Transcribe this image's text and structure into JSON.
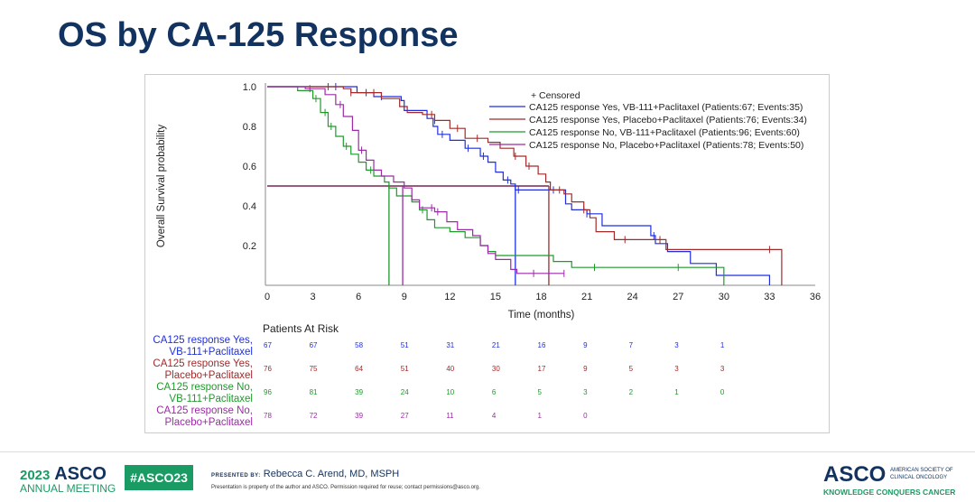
{
  "slide_title": "OS by CA-125 Response",
  "chart_data": {
    "type": "line",
    "subtype": "kaplan-meier step",
    "xlabel": "Time (months)",
    "ylabel": "Overall Survival probability",
    "xlim": [
      0,
      36
    ],
    "ylim": [
      0,
      1.0
    ],
    "x_ticks": [
      0,
      3,
      6,
      9,
      12,
      15,
      18,
      21,
      24,
      27,
      30,
      33,
      36
    ],
    "y_ticks": [
      0.2,
      0.4,
      0.6,
      0.8,
      1.0
    ],
    "y_tick_labels": [
      "0.2",
      "0.4",
      "0.6",
      "0.8",
      "1.0"
    ],
    "grid": false,
    "legend_position": "top-right",
    "legend_censored": "+ Censored",
    "median_line": {
      "y": 0.5,
      "color": "#7a2550"
    },
    "series": [
      {
        "name": "CA125 response Yes, VB-111+Paclitaxel (Patients:67; Events:35)",
        "color": "#1f2fe0",
        "median": 16.3,
        "points": [
          [
            0,
            1
          ],
          [
            5.85,
            1
          ],
          [
            5.9,
            0.97
          ],
          [
            7,
            0.95
          ],
          [
            8.8,
            0.93
          ],
          [
            9,
            0.88
          ],
          [
            10.5,
            0.84
          ],
          [
            10.9,
            0.8
          ],
          [
            11.2,
            0.76
          ],
          [
            12,
            0.73
          ],
          [
            13,
            0.69
          ],
          [
            14,
            0.65
          ],
          [
            14.5,
            0.62
          ],
          [
            15,
            0.57
          ],
          [
            15.5,
            0.53
          ],
          [
            16,
            0.51
          ],
          [
            16.3,
            0.48
          ],
          [
            19.4,
            0.48
          ],
          [
            19.6,
            0.41
          ],
          [
            20,
            0.38
          ],
          [
            21,
            0.36
          ],
          [
            22,
            0.3
          ],
          [
            25.2,
            0.25
          ],
          [
            25.5,
            0.21
          ],
          [
            26.3,
            0.17
          ],
          [
            27.8,
            0.11
          ],
          [
            29.5,
            0.05
          ],
          [
            33,
            0
          ]
        ],
        "censored": [
          4.5,
          6.5,
          7.5,
          11.5,
          13.2,
          14.2,
          15.8,
          16.5,
          18.8,
          21,
          25.4
        ]
      },
      {
        "name": "CA125 response Yes, Placebo+Paclitaxel (Patients:76; Events:34)",
        "color": "#a12a2a",
        "median": 18.5,
        "points": [
          [
            0,
            1
          ],
          [
            5,
            0.99
          ],
          [
            5.5,
            0.97
          ],
          [
            7.5,
            0.94
          ],
          [
            8.7,
            0.9
          ],
          [
            9.2,
            0.87
          ],
          [
            10.2,
            0.86
          ],
          [
            11,
            0.83
          ],
          [
            12,
            0.79
          ],
          [
            13,
            0.74
          ],
          [
            14.5,
            0.72
          ],
          [
            15.3,
            0.69
          ],
          [
            16.2,
            0.65
          ],
          [
            17,
            0.6
          ],
          [
            17.8,
            0.56
          ],
          [
            18.3,
            0.52
          ],
          [
            18.6,
            0.48
          ],
          [
            19.5,
            0.46
          ],
          [
            20,
            0.42
          ],
          [
            20.8,
            0.38
          ],
          [
            21.2,
            0.34
          ],
          [
            21.6,
            0.27
          ],
          [
            22.8,
            0.23
          ],
          [
            26.2,
            0.18
          ],
          [
            33.8,
            0.17
          ],
          [
            33.8,
            0
          ]
        ],
        "censored": [
          4,
          5.5,
          7,
          10.8,
          11,
          12.5,
          13.8,
          16.3,
          17.2,
          19.2,
          20.8,
          23.5,
          25.8,
          33
        ]
      },
      {
        "name": "CA125 response No, VB-111+Paclitaxel (Patients:96; Events:60)",
        "color": "#1e9a2a",
        "median": 8.0,
        "points": [
          [
            0,
            1
          ],
          [
            1.4,
            1
          ],
          [
            2,
            0.98
          ],
          [
            3,
            0.94
          ],
          [
            3.5,
            0.87
          ],
          [
            4,
            0.8
          ],
          [
            4.5,
            0.75
          ],
          [
            5,
            0.7
          ],
          [
            5.5,
            0.66
          ],
          [
            6,
            0.62
          ],
          [
            6.5,
            0.58
          ],
          [
            7,
            0.55
          ],
          [
            7.7,
            0.52
          ],
          [
            8,
            0.49
          ],
          [
            8.5,
            0.45
          ],
          [
            9.5,
            0.42
          ],
          [
            10,
            0.38
          ],
          [
            10.5,
            0.33
          ],
          [
            11,
            0.29
          ],
          [
            12,
            0.27
          ],
          [
            13,
            0.24
          ],
          [
            14,
            0.2
          ],
          [
            14.5,
            0.17
          ],
          [
            15,
            0.15
          ],
          [
            18.8,
            0.12
          ],
          [
            20,
            0.09
          ],
          [
            30,
            0.07
          ],
          [
            30,
            0
          ]
        ],
        "censored": [
          3.2,
          3.8,
          4.2,
          5.2,
          6.8,
          10.2,
          15,
          21.5,
          27
        ]
      },
      {
        "name": "CA125 response No, Placebo+Paclitaxel (Patients:78; Events:50)",
        "color": "#9b2ba6",
        "median": 8.9,
        "points": [
          [
            0,
            1
          ],
          [
            2.5,
            0.99
          ],
          [
            3.8,
            0.96
          ],
          [
            4.5,
            0.91
          ],
          [
            5,
            0.85
          ],
          [
            5.6,
            0.78
          ],
          [
            6,
            0.68
          ],
          [
            6.5,
            0.63
          ],
          [
            7,
            0.58
          ],
          [
            7.5,
            0.55
          ],
          [
            8.3,
            0.52
          ],
          [
            9,
            0.49
          ],
          [
            9.5,
            0.43
          ],
          [
            10,
            0.39
          ],
          [
            11,
            0.37
          ],
          [
            11.8,
            0.32
          ],
          [
            12.5,
            0.28
          ],
          [
            13.5,
            0.25
          ],
          [
            14,
            0.2
          ],
          [
            14.5,
            0.16
          ],
          [
            15,
            0.13
          ],
          [
            16,
            0.08
          ],
          [
            16.4,
            0.06
          ],
          [
            19.5,
            0.06
          ]
        ],
        "censored": [
          2.8,
          4.8,
          6.2,
          10.8,
          11.2,
          17.5,
          18.5,
          19.5
        ]
      }
    ],
    "risk_table": {
      "title": "Patients At Risk",
      "times": [
        0,
        3,
        6,
        9,
        12,
        15,
        18,
        21,
        24,
        27,
        30
      ],
      "rows": [
        {
          "label1": "CA125 response Yes,",
          "label2": "VB-111+Paclitaxel",
          "color": "#1f2fe0",
          "values": [
            "67",
            "67",
            "58",
            "51",
            "31",
            "21",
            "16",
            "9",
            "7",
            "3",
            "1"
          ]
        },
        {
          "label1": "CA125 response Yes,",
          "label2": "Placebo+Paclitaxel",
          "color": "#a12a2a",
          "values": [
            "76",
            "75",
            "64",
            "51",
            "40",
            "30",
            "17",
            "9",
            "5",
            "3",
            "3"
          ]
        },
        {
          "label1": "CA125 response No,",
          "label2": "VB-111+Paclitaxel",
          "color": "#1e9a2a",
          "values": [
            "96",
            "81",
            "39",
            "24",
            "10",
            "6",
            "5",
            "3",
            "2",
            "1",
            "0"
          ]
        },
        {
          "label1": "CA125 response No,",
          "label2": "Placebo+Paclitaxel",
          "color": "#9b2ba6",
          "values": [
            "78",
            "72",
            "39",
            "27",
            "11",
            "4",
            "1",
            "0"
          ]
        }
      ]
    }
  },
  "footer": {
    "meeting_year": "2023",
    "meeting_brand": "ASCO",
    "meeting_sub": "ANNUAL MEETING",
    "hashtag": "#ASCO23",
    "presented_by_label": "PRESENTED BY:",
    "presenter": "Rebecca C. Arend, MD, MSPH",
    "disclaimer": "Presentation is property of the author and ASCO. Permission required for reuse; contact permissions@asco.org.",
    "logo_brand": "ASCO",
    "logo_sub1": "AMERICAN SOCIETY OF",
    "logo_sub2": "CLINICAL ONCOLOGY",
    "tagline": "KNOWLEDGE CONQUERS CANCER",
    "green": "#1a9b63",
    "navy": "#12325f"
  }
}
